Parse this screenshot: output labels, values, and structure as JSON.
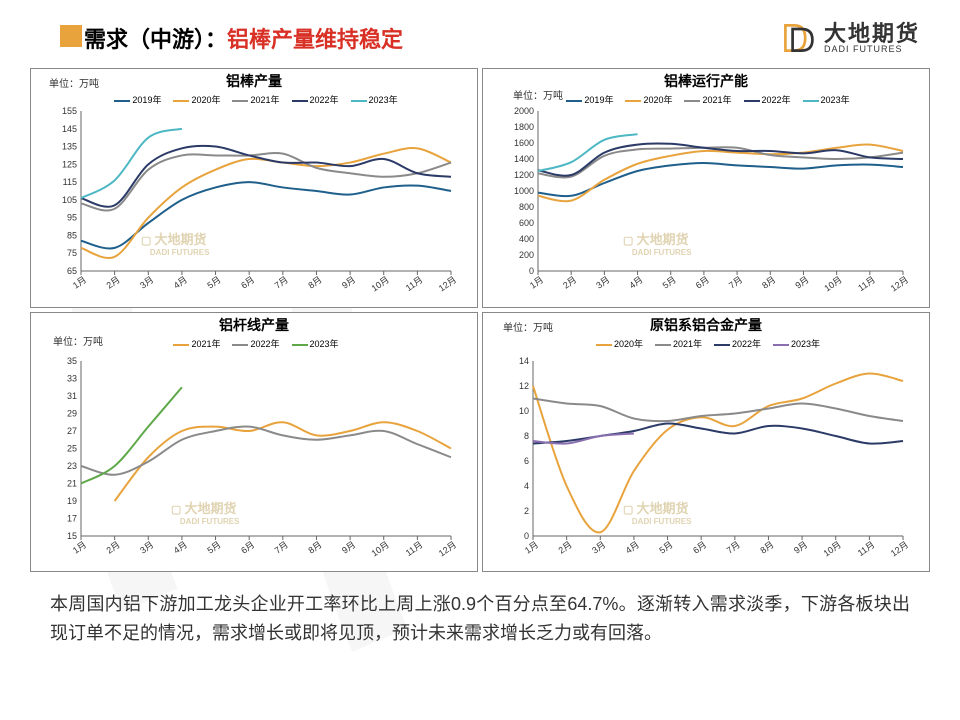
{
  "header": {
    "title_black": "需求（中游）：",
    "title_red": "铝棒产量维持稳定",
    "logo_cn": "大地期货",
    "logo_en": "DADI FUTURES"
  },
  "colors": {
    "c2019": "#1f5f8b",
    "c2020": "#e8a33d",
    "c2021": "#8a8a8a",
    "c2022": "#2b3a67",
    "c2023": "#4db8c4",
    "green2023": "#5fa84a",
    "purple2023": "#8a6fb0",
    "axis": "#666666",
    "border": "#7f7f7f",
    "bg": "#ffffff",
    "watermark": "#d9c9a0"
  },
  "months": [
    "1月",
    "2月",
    "3月",
    "4月",
    "5月",
    "6月",
    "7月",
    "8月",
    "9月",
    "10月",
    "11月",
    "12月"
  ],
  "charts": {
    "c1": {
      "title": "铝棒产量",
      "unit": "单位：万吨",
      "ylim": [
        65,
        155
      ],
      "ytick_step": 10,
      "legend": [
        {
          "label": "2019年",
          "color": "#1f5f8b"
        },
        {
          "label": "2020年",
          "color": "#e8a33d"
        },
        {
          "label": "2021年",
          "color": "#8a8a8a"
        },
        {
          "label": "2022年",
          "color": "#2b3a67"
        },
        {
          "label": "2023年",
          "color": "#4db8c4"
        }
      ],
      "series": {
        "2019": [
          82,
          78,
          92,
          105,
          112,
          115,
          112,
          110,
          108,
          112,
          113,
          110
        ],
        "2020": [
          78,
          73,
          95,
          112,
          122,
          128,
          126,
          124,
          126,
          131,
          134,
          126
        ],
        "2021": [
          103,
          100,
          122,
          130,
          130,
          130,
          131,
          123,
          120,
          118,
          120,
          126
        ],
        "2022": [
          106,
          102,
          125,
          134,
          135,
          130,
          126,
          126,
          124,
          128,
          120,
          118
        ],
        "2023": [
          106,
          116,
          140,
          145,
          null,
          null,
          null,
          null,
          null,
          null,
          null,
          null
        ]
      }
    },
    "c2": {
      "title": "铝棒运行产能",
      "unit": "单位：万吨",
      "ylim": [
        0,
        2000
      ],
      "ytick_step": 200,
      "legend": [
        {
          "label": "2019年",
          "color": "#1f5f8b"
        },
        {
          "label": "2020年",
          "color": "#e8a33d"
        },
        {
          "label": "2021年",
          "color": "#8a8a8a"
        },
        {
          "label": "2022年",
          "color": "#2b3a67"
        },
        {
          "label": "2023年",
          "color": "#4db8c4"
        }
      ],
      "series": {
        "2019": [
          980,
          940,
          1100,
          1250,
          1320,
          1350,
          1320,
          1300,
          1280,
          1320,
          1330,
          1300
        ],
        "2020": [
          940,
          880,
          1140,
          1340,
          1440,
          1500,
          1480,
          1460,
          1480,
          1540,
          1580,
          1500
        ],
        "2021": [
          1220,
          1180,
          1440,
          1520,
          1530,
          1540,
          1540,
          1450,
          1420,
          1400,
          1420,
          1480
        ],
        "2022": [
          1260,
          1200,
          1480,
          1580,
          1590,
          1540,
          1500,
          1500,
          1470,
          1510,
          1420,
          1400
        ],
        "2023": [
          1250,
          1360,
          1640,
          1710,
          null,
          null,
          null,
          null,
          null,
          null,
          null,
          null
        ]
      }
    },
    "c3": {
      "title": "铝杆线产量",
      "unit": "单位：万吨",
      "ylim": [
        15,
        35
      ],
      "ytick_step": 2,
      "legend": [
        {
          "label": "2021年",
          "color": "#e8a33d"
        },
        {
          "label": "2022年",
          "color": "#8a8a8a"
        },
        {
          "label": "2023年",
          "color": "#5fa84a"
        }
      ],
      "series": {
        "2021": [
          null,
          19,
          24,
          27,
          27.5,
          27,
          28,
          26.5,
          27,
          28,
          27,
          25
        ],
        "2022": [
          23,
          22,
          23.5,
          26,
          27,
          27.5,
          26.5,
          26,
          26.5,
          27,
          25.5,
          24
        ],
        "2023": [
          21,
          23,
          27.5,
          32,
          null,
          null,
          null,
          null,
          null,
          null,
          null,
          null
        ]
      }
    },
    "c4": {
      "title": "原铝系铝合金产量",
      "unit": "单位：万吨",
      "ylim": [
        0,
        14
      ],
      "ytick_step": 2,
      "legend": [
        {
          "label": "2020年",
          "color": "#e8a33d"
        },
        {
          "label": "2021年",
          "color": "#8a8a8a"
        },
        {
          "label": "2022年",
          "color": "#2b3a67"
        },
        {
          "label": "2023年",
          "color": "#8a6fb0"
        }
      ],
      "series": {
        "2020": [
          12,
          4,
          0.3,
          5.2,
          8.5,
          9.5,
          8.8,
          10.4,
          11,
          12.2,
          13,
          12.4
        ],
        "2021": [
          11,
          10.6,
          10.4,
          9.4,
          9.2,
          9.6,
          9.8,
          10.2,
          10.6,
          10.2,
          9.6,
          9.2
        ],
        "2022": [
          7.4,
          7.6,
          8,
          8.4,
          9,
          8.6,
          8.2,
          8.8,
          8.6,
          8,
          7.4,
          7.6
        ],
        "2023": [
          7.6,
          7.4,
          8,
          8.2,
          null,
          null,
          null,
          null,
          null,
          null,
          null,
          null
        ]
      }
    }
  },
  "watermark": {
    "cn": "大地期货",
    "en": "DADI FUTURES"
  },
  "body_text": "本周国内铝下游加工龙头企业开工率环比上周上涨0.9个百分点至64.7%。逐渐转入需求淡季，下游各板块出现订单不足的情况，需求增长或即将见顶，预计未来需求增长乏力或有回落。"
}
